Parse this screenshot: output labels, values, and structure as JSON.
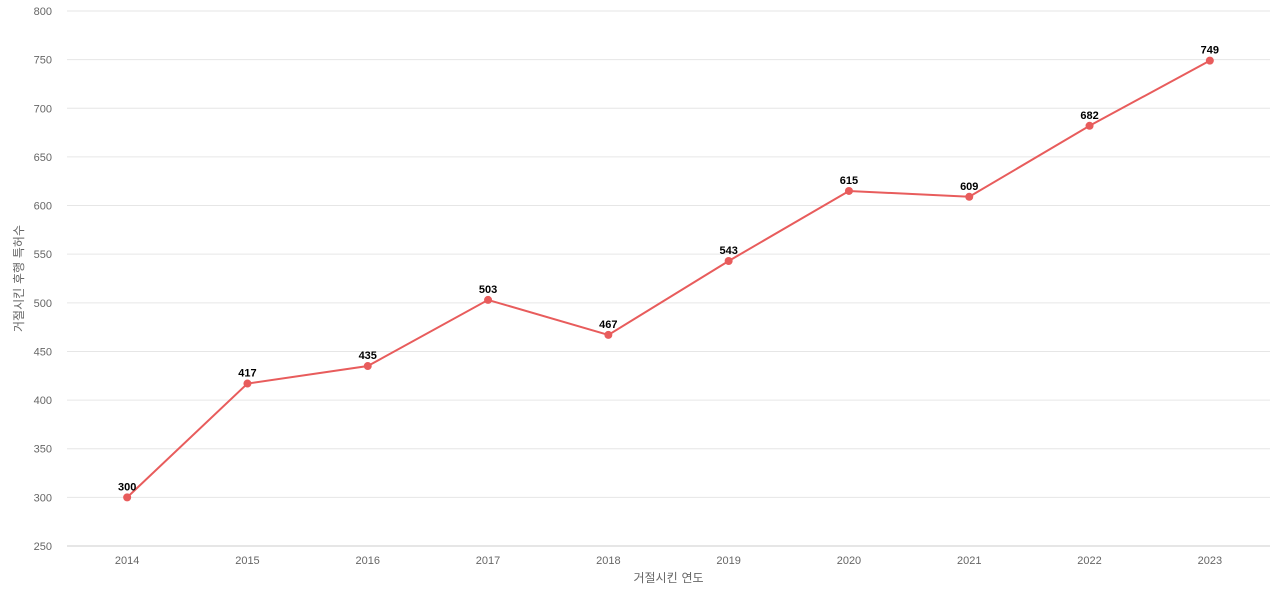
{
  "chart_data": {
    "type": "line",
    "title": "",
    "xlabel": "거절시킨 연도",
    "ylabel": "거절시킨 후행 특허수",
    "categories": [
      "2014",
      "2015",
      "2016",
      "2017",
      "2018",
      "2019",
      "2020",
      "2021",
      "2022",
      "2023"
    ],
    "series": [
      {
        "values": [
          300,
          417,
          435,
          503,
          467,
          543,
          615,
          609,
          682,
          749
        ],
        "color": "#e85c5c"
      }
    ],
    "ylim": [
      250,
      800
    ],
    "yticks": [
      250,
      300,
      350,
      400,
      450,
      500,
      550,
      600,
      650,
      700,
      750,
      800
    ],
    "grid": true,
    "legend": "none",
    "data_labels": true
  }
}
